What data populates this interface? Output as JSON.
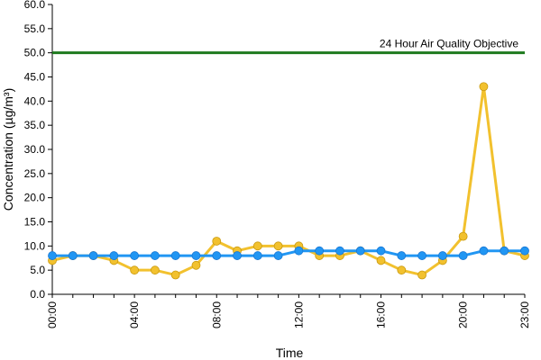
{
  "chart_data": {
    "type": "line",
    "title": "",
    "xlabel": "Time",
    "ylabel": "Concentration (µg/m³)",
    "ylim": [
      0,
      60
    ],
    "yticks": [
      "0.0",
      "5.0",
      "10.0",
      "15.0",
      "20.0",
      "25.0",
      "30.0",
      "35.0",
      "40.0",
      "45.0",
      "50.0",
      "55.0",
      "60.0"
    ],
    "xticks": [
      "00:00",
      "04:00",
      "08:00",
      "12:00",
      "16:00",
      "20:00",
      "23:00"
    ],
    "x": [
      "00:00",
      "01:00",
      "02:00",
      "03:00",
      "04:00",
      "05:00",
      "06:00",
      "07:00",
      "08:00",
      "09:00",
      "10:00",
      "11:00",
      "12:00",
      "13:00",
      "14:00",
      "15:00",
      "16:00",
      "17:00",
      "18:00",
      "19:00",
      "20:00",
      "21:00",
      "22:00",
      "23:00"
    ],
    "grid": false,
    "objective": {
      "label": "24 Hour Air Quality Objective",
      "value": 50.0,
      "color": "#1e7a1e"
    },
    "series": [
      {
        "color": "#f2c12e",
        "values": [
          7,
          8,
          8,
          7,
          5,
          5,
          4,
          6,
          11,
          9,
          10,
          10,
          10,
          8,
          8,
          9,
          7,
          5,
          4,
          7,
          12,
          43,
          9,
          8
        ]
      },
      {
        "color": "#2196f3",
        "values": [
          8,
          8,
          8,
          8,
          8,
          8,
          8,
          8,
          8,
          8,
          8,
          8,
          9,
          9,
          9,
          9,
          9,
          8,
          8,
          8,
          8,
          9,
          9,
          9
        ]
      }
    ]
  }
}
